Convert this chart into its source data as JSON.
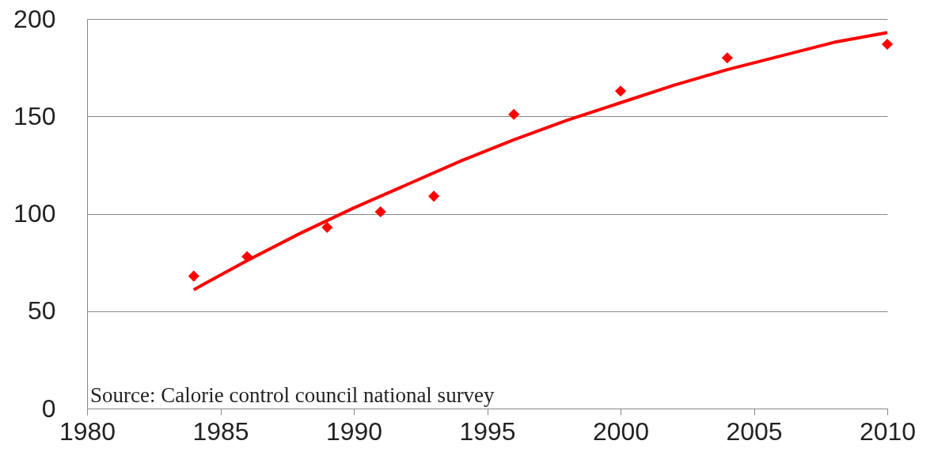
{
  "chart_data": {
    "type": "scatter",
    "x": [
      1984,
      1986,
      1989,
      1991,
      1993,
      1996,
      2000,
      2004,
      2010
    ],
    "series": [
      {
        "color": "#ff0000",
        "marker": "diamond",
        "values": [
          68,
          78,
          93,
          101,
          109,
          151,
          163,
          180,
          187
        ]
      },
      {
        "type": "line",
        "color": "#ff0000",
        "line_style": "solid",
        "x": [
          1984,
          1986,
          1988,
          1990,
          1992,
          1994,
          1996,
          1998,
          2000,
          2002,
          2004,
          2006,
          2008,
          2010
        ],
        "values": [
          61,
          76,
          90,
          103,
          115,
          127,
          138,
          148,
          157,
          166,
          174,
          181,
          188,
          193
        ]
      }
    ],
    "xlim": [
      1980,
      2010
    ],
    "xticks": [
      1980,
      1985,
      1990,
      1995,
      2000,
      2005,
      2010
    ],
    "ylim": [
      0,
      200
    ],
    "yticks": [
      0,
      50,
      100,
      150,
      200
    ],
    "grid": "y",
    "annotations": [
      "Source: Calorie control council national survey"
    ]
  }
}
